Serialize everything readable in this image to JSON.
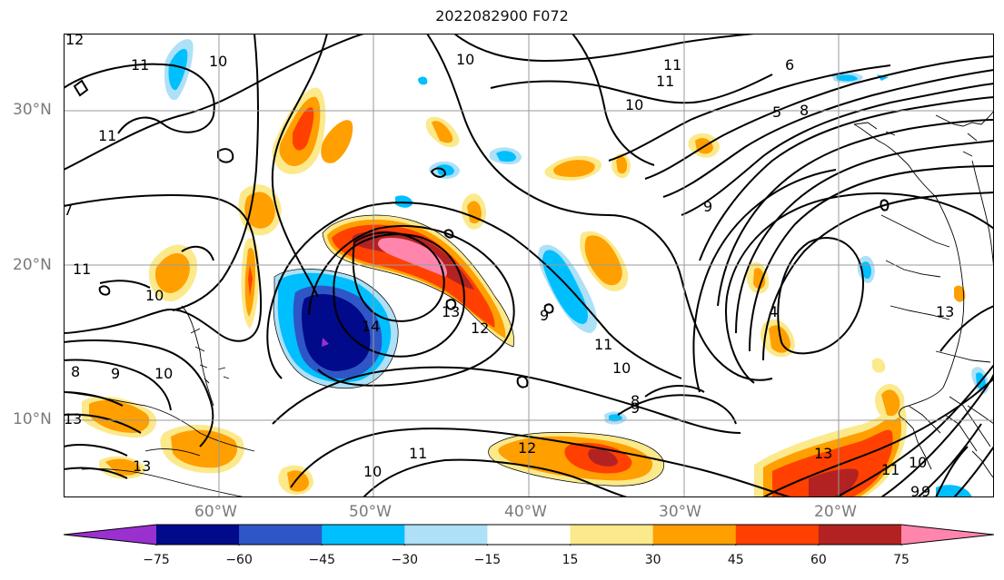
{
  "title": "2022082900 F072",
  "map": {
    "lon_range": [
      -70,
      -10
    ],
    "lat_range": [
      5,
      35
    ],
    "grid_lons": [
      -60,
      -50,
      -40,
      -30,
      -20
    ],
    "grid_lats": [
      10,
      20,
      30
    ],
    "lat_labels": [
      "30°N",
      "20°N",
      "10°N"
    ],
    "lon_labels": [
      "60°W",
      "50°W",
      "40°W",
      "30°W",
      "20°W"
    ],
    "contour_labels": [
      "12",
      "10",
      "10",
      "11",
      "10",
      "11",
      "6",
      "5",
      "8",
      "7",
      "11",
      "11",
      "11",
      "9",
      "10",
      "14",
      "13",
      "12",
      "10",
      "11",
      "10",
      "8",
      "9",
      "9",
      "4",
      "13",
      "9",
      "8",
      "9",
      "13",
      "13",
      "12",
      "11",
      "10",
      "13",
      "9",
      "10",
      "11"
    ]
  },
  "colorbar": {
    "ticks": [
      "−75",
      "−60",
      "−45",
      "−30",
      "−15",
      "15",
      "30",
      "45",
      "60",
      "75"
    ],
    "colors": [
      "#9b30d0",
      "#000a8a",
      "#2f56c6",
      "#00bfff",
      "#aee0f7",
      "#ffffff",
      "#fbe98b",
      "#ff9f00",
      "#ff4000",
      "#b22222",
      "#ff85ad"
    ],
    "under_color": "#9b30d0",
    "over_color": "#ff85ad"
  }
}
